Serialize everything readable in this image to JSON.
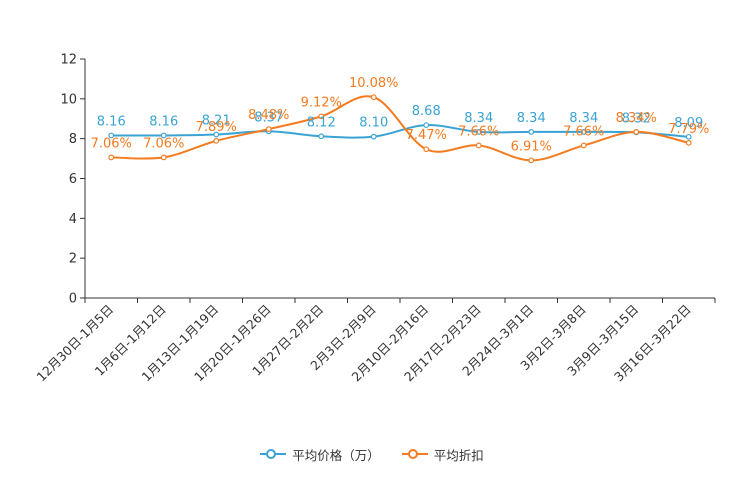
{
  "chart_data": {
    "type": "line",
    "categories": [
      "12月30日-1月5日",
      "1月6日-1月12日",
      "1月13日-1月19日",
      "1月20日-1月26日",
      "1月27日-2月2日",
      "2月3日-2月9日",
      "2月10日-2月16日",
      "2月17日-2月23日",
      "2月24日-3月1日",
      "3月2日-3月8日",
      "3月9日-3月15日",
      "3月16日-3月22日"
    ],
    "ylim": [
      0,
      12
    ],
    "yticks": [
      "0",
      "2",
      "4",
      "6",
      "8",
      "10",
      "12"
    ],
    "series": [
      {
        "name": "平均价格（万）",
        "color": "#3aa3d4",
        "values": [
          8.16,
          8.16,
          8.21,
          8.37,
          8.12,
          8.1,
          8.68,
          8.34,
          8.34,
          8.34,
          8.32,
          8.09
        ],
        "labels": [
          "8.16",
          "8.16",
          "8.21",
          "8.37",
          "8.12",
          "8.10",
          "8.68",
          "8.34",
          "8.34",
          "8.34",
          "8.32",
          "8.09"
        ]
      },
      {
        "name": "平均折扣",
        "color": "#f47b20",
        "values": [
          7.06,
          7.06,
          7.89,
          8.48,
          9.12,
          10.08,
          7.47,
          7.66,
          6.91,
          7.66,
          8.34,
          7.79
        ],
        "labels": [
          "7.06%",
          "7.06%",
          "7.89%",
          "8.48%",
          "9.12%",
          "10.08%",
          "7.47%",
          "7.66%",
          "6.91%",
          "7.66%",
          "8.34%",
          "7.79%"
        ]
      }
    ]
  }
}
